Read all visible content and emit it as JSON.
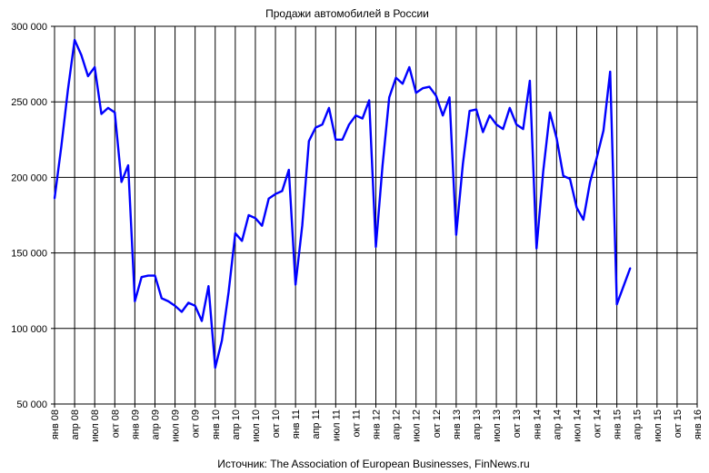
{
  "chart_data": {
    "type": "line",
    "title": "Продажи автомобилей в России",
    "source": "Источник: The Association of European Businesses, FinNews.ru",
    "ylim": [
      50000,
      300000
    ],
    "y_ticks": [
      50000,
      100000,
      150000,
      200000,
      250000,
      300000
    ],
    "y_tick_labels": [
      "50 000",
      "100 000",
      "150 000",
      "200 000",
      "250 000",
      "300 000"
    ],
    "x_tick_labels": [
      "янв 08",
      "апр 08",
      "июл 08",
      "окт 08",
      "янв 09",
      "апр 09",
      "июл 09",
      "окт 09",
      "янв 10",
      "апр 10",
      "июл 10",
      "окт 10",
      "янв 11",
      "апр 11",
      "июл 11",
      "окт 11",
      "янв 12",
      "апр 12",
      "июл 12",
      "окт 12",
      "янв 13",
      "апр 13",
      "июл 13",
      "окт 13",
      "янв 14",
      "апр 14",
      "июл 14",
      "окт 14",
      "янв 15",
      "апр 15",
      "июл 15",
      "окт 15",
      "янв 16"
    ],
    "grid": true,
    "line_color": "#0000ff",
    "series": [
      {
        "values": [
          186000,
          220000,
          258000,
          291000,
          281000,
          267000,
          273000,
          242000,
          246000,
          243000,
          197000,
          208000,
          118000,
          134000,
          135000,
          135000,
          120000,
          118000,
          115000,
          111000,
          117000,
          115000,
          105000,
          128000,
          74000,
          92000,
          124000,
          163000,
          158000,
          175000,
          173000,
          168000,
          186000,
          189000,
          191000,
          205000,
          129000,
          168000,
          224000,
          233000,
          235000,
          246000,
          225000,
          225000,
          235000,
          241000,
          239000,
          251000,
          154000,
          208000,
          253000,
          266000,
          262000,
          273000,
          256000,
          259000,
          260000,
          254000,
          241000,
          253000,
          162000,
          209000,
          244000,
          245000,
          230000,
          241000,
          235000,
          232000,
          246000,
          235000,
          232000,
          264000,
          153000,
          204000,
          243000,
          226000,
          201000,
          199000,
          180000,
          172000,
          197000,
          213000,
          231000,
          270000,
          116000,
          128000,
          140000
        ]
      }
    ]
  }
}
